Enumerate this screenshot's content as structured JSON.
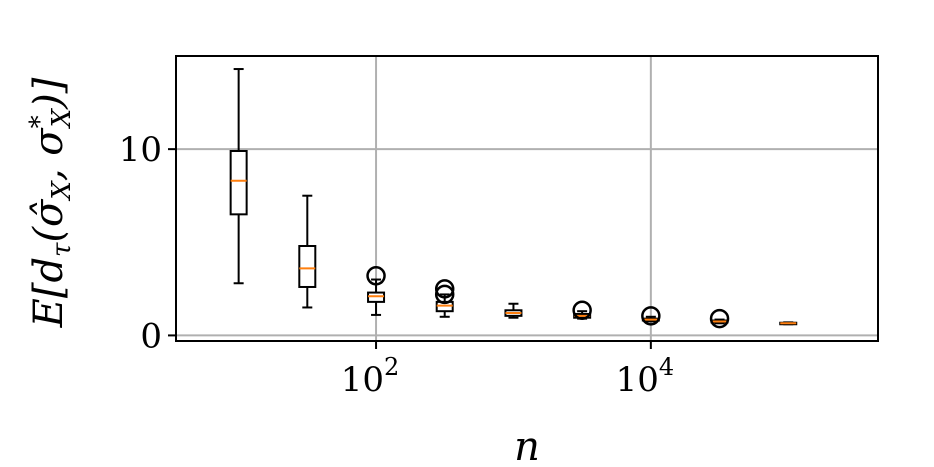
{
  "chart_data": {
    "type": "boxplot",
    "x_scale": "log",
    "xlabel": "n",
    "ylabel": "E[d_τ(σ̂_X, σ*_X)]",
    "xlim": [
      3.5,
      450000
    ],
    "ylim": [
      -0.3,
      15
    ],
    "grid": true,
    "x_ticks": [
      {
        "value": 100,
        "base": "10",
        "exp": "2"
      },
      {
        "value": 10000,
        "base": "10",
        "exp": "4"
      }
    ],
    "y_ticks": [
      {
        "value": 0,
        "label": "0"
      },
      {
        "value": 10,
        "label": "10"
      }
    ],
    "boxes": [
      {
        "x": 10,
        "whisker_low": 2.8,
        "q1": 6.5,
        "median": 8.3,
        "q3": 9.9,
        "whisker_high": 14.3,
        "outliers": []
      },
      {
        "x": 31.6,
        "whisker_low": 1.5,
        "q1": 2.6,
        "median": 3.6,
        "q3": 4.8,
        "whisker_high": 7.5,
        "outliers": []
      },
      {
        "x": 100,
        "whisker_low": 1.1,
        "q1": 1.8,
        "median": 2.1,
        "q3": 2.3,
        "whisker_high": 3.0,
        "outliers": [
          3.2
        ]
      },
      {
        "x": 316,
        "whisker_low": 1.0,
        "q1": 1.3,
        "median": 1.6,
        "q3": 1.8,
        "whisker_high": 2.2,
        "outliers": [
          2.5,
          2.2
        ]
      },
      {
        "x": 1000,
        "whisker_low": 0.95,
        "q1": 1.05,
        "median": 1.2,
        "q3": 1.35,
        "whisker_high": 1.7,
        "outliers": []
      },
      {
        "x": 3162,
        "whisker_low": 0.9,
        "q1": 0.95,
        "median": 1.05,
        "q3": 1.15,
        "whisker_high": 1.3,
        "outliers": [
          1.35
        ]
      },
      {
        "x": 10000,
        "whisker_low": 0.75,
        "q1": 0.8,
        "median": 0.85,
        "q3": 0.9,
        "whisker_high": 1.0,
        "outliers": [
          1.05
        ]
      },
      {
        "x": 31623,
        "whisker_low": 0.65,
        "q1": 0.7,
        "median": 0.75,
        "q3": 0.8,
        "whisker_high": 0.85,
        "outliers": [
          0.9
        ]
      },
      {
        "x": 100000,
        "whisker_low": 0.6,
        "q1": 0.62,
        "median": 0.65,
        "q3": 0.68,
        "whisker_high": 0.7,
        "outliers": []
      }
    ],
    "colors": {
      "box": "#000000",
      "median": "#ff7f0e",
      "grid": "#b0b0b0"
    }
  }
}
